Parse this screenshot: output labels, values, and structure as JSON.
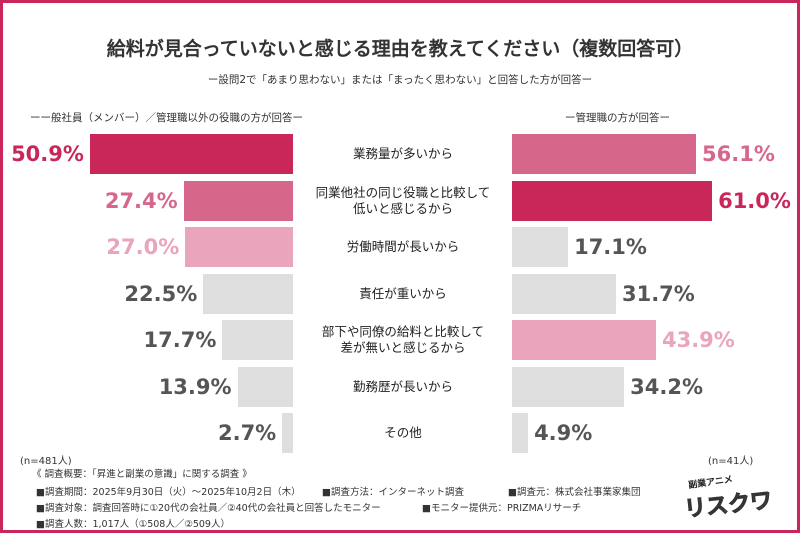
{
  "title": "給料が見合っていないと感じる理由を教えてください（複数回答可）",
  "subtitle": "ー設問2で「あまり思わない」または「まったく思わない」と回答した方が回答ー",
  "chart_data": {
    "type": "bar",
    "title": "給料が見合っていないと感じる理由を教えてください（複数回答可）",
    "categories": [
      "業務量が多いから",
      "同業他社の同じ役職と比較して\n低いと感じるから",
      "労働時間が長いから",
      "責任が重いから",
      "部下や同僚の給料と比較して\n差が無いと感じるから",
      "勤務歴が長いから",
      "その他"
    ],
    "series": [
      {
        "name": "ーー般社員（メンバー）／管理職以外の役職の方が回答ー",
        "n": "(n=481人)",
        "values": [
          50.9,
          27.4,
          27.0,
          22.5,
          17.7,
          13.9,
          2.7
        ],
        "ranks": [
          1,
          2,
          3,
          0,
          0,
          0,
          0
        ]
      },
      {
        "name": "ー管理職の方が回答ー",
        "n": "(n=41人)",
        "values": [
          56.1,
          61.0,
          17.1,
          31.7,
          43.9,
          34.2,
          4.9
        ],
        "ranks": [
          2,
          1,
          0,
          0,
          3,
          0,
          0
        ]
      }
    ],
    "unit": "%",
    "colors": {
      "rank1": "#c9265a",
      "rank2": "#d6678a",
      "rank3": "#eaa4bb",
      "other": "#dedede",
      "other_text": "#555555"
    }
  },
  "footer": {
    "heading": "《 調査概要：「昇進と副業の意識」に関する調査 》",
    "period": "■調査期間：2025年9月30日（火）～2025年10月2日（木）",
    "method": "■調査方法：インターネット調査",
    "source": "■調査元：株式会社事業家集団",
    "target": "■調査対象：調査回答時に①20代の会社員／②40代の会社員と回答したモニター",
    "provider": "■モニター提供元：PRIZMAリサーチ",
    "count": "■調査人数：1,017人（①508人／②509人）"
  },
  "logo": {
    "top": "副業アニメ",
    "main": "リスクワ"
  }
}
